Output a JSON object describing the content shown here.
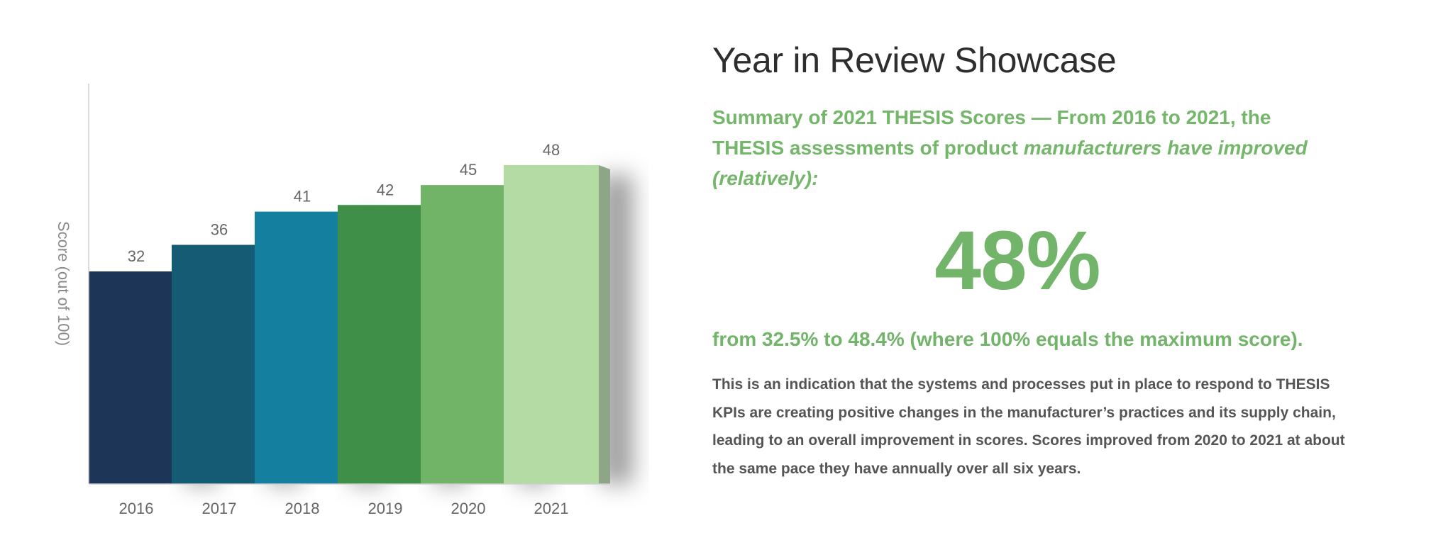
{
  "chart_data": {
    "type": "bar",
    "categories": [
      "2016",
      "2017",
      "2018",
      "2019",
      "2020",
      "2021"
    ],
    "values": [
      32,
      36,
      41,
      42,
      45,
      48
    ],
    "ylabel": "Score (out of 100)",
    "xlabel": "",
    "title": "",
    "data_labels": true,
    "colors": [
      "#1d3658",
      "#145b73",
      "#147f9e",
      "#3f8f48",
      "#72b467",
      "#b5dba5"
    ],
    "side_colors": [
      "#0c2034",
      "#0b3d4f",
      "#0c5e75",
      "#2b6b33",
      "#54954a",
      "#8fa588"
    ],
    "style": "3d"
  },
  "panel": {
    "title": "Year in Review Showcase",
    "subtitle_plain": "Summary of 2021 THESIS Scores — From 2016 to 2021, the THESIS assessments of product ",
    "subtitle_italic": "manufacturers have improved (relatively):",
    "big_stat": "48%",
    "from_line": "from 32.5% to 48.4% (where 100% equals the maximum score).",
    "body": "This is an indication that the systems and processes put in place to respond to THESIS KPIs are creating positive changes in the manufacturer’s practices and its supply chain, leading to an overall improvement in scores. Scores improved from 2020 to 2021 at about the same pace they have annually over all six years."
  },
  "colors": {
    "accent_green": "#72b469",
    "title_text": "#2e2e2e",
    "body_text": "#555555"
  }
}
